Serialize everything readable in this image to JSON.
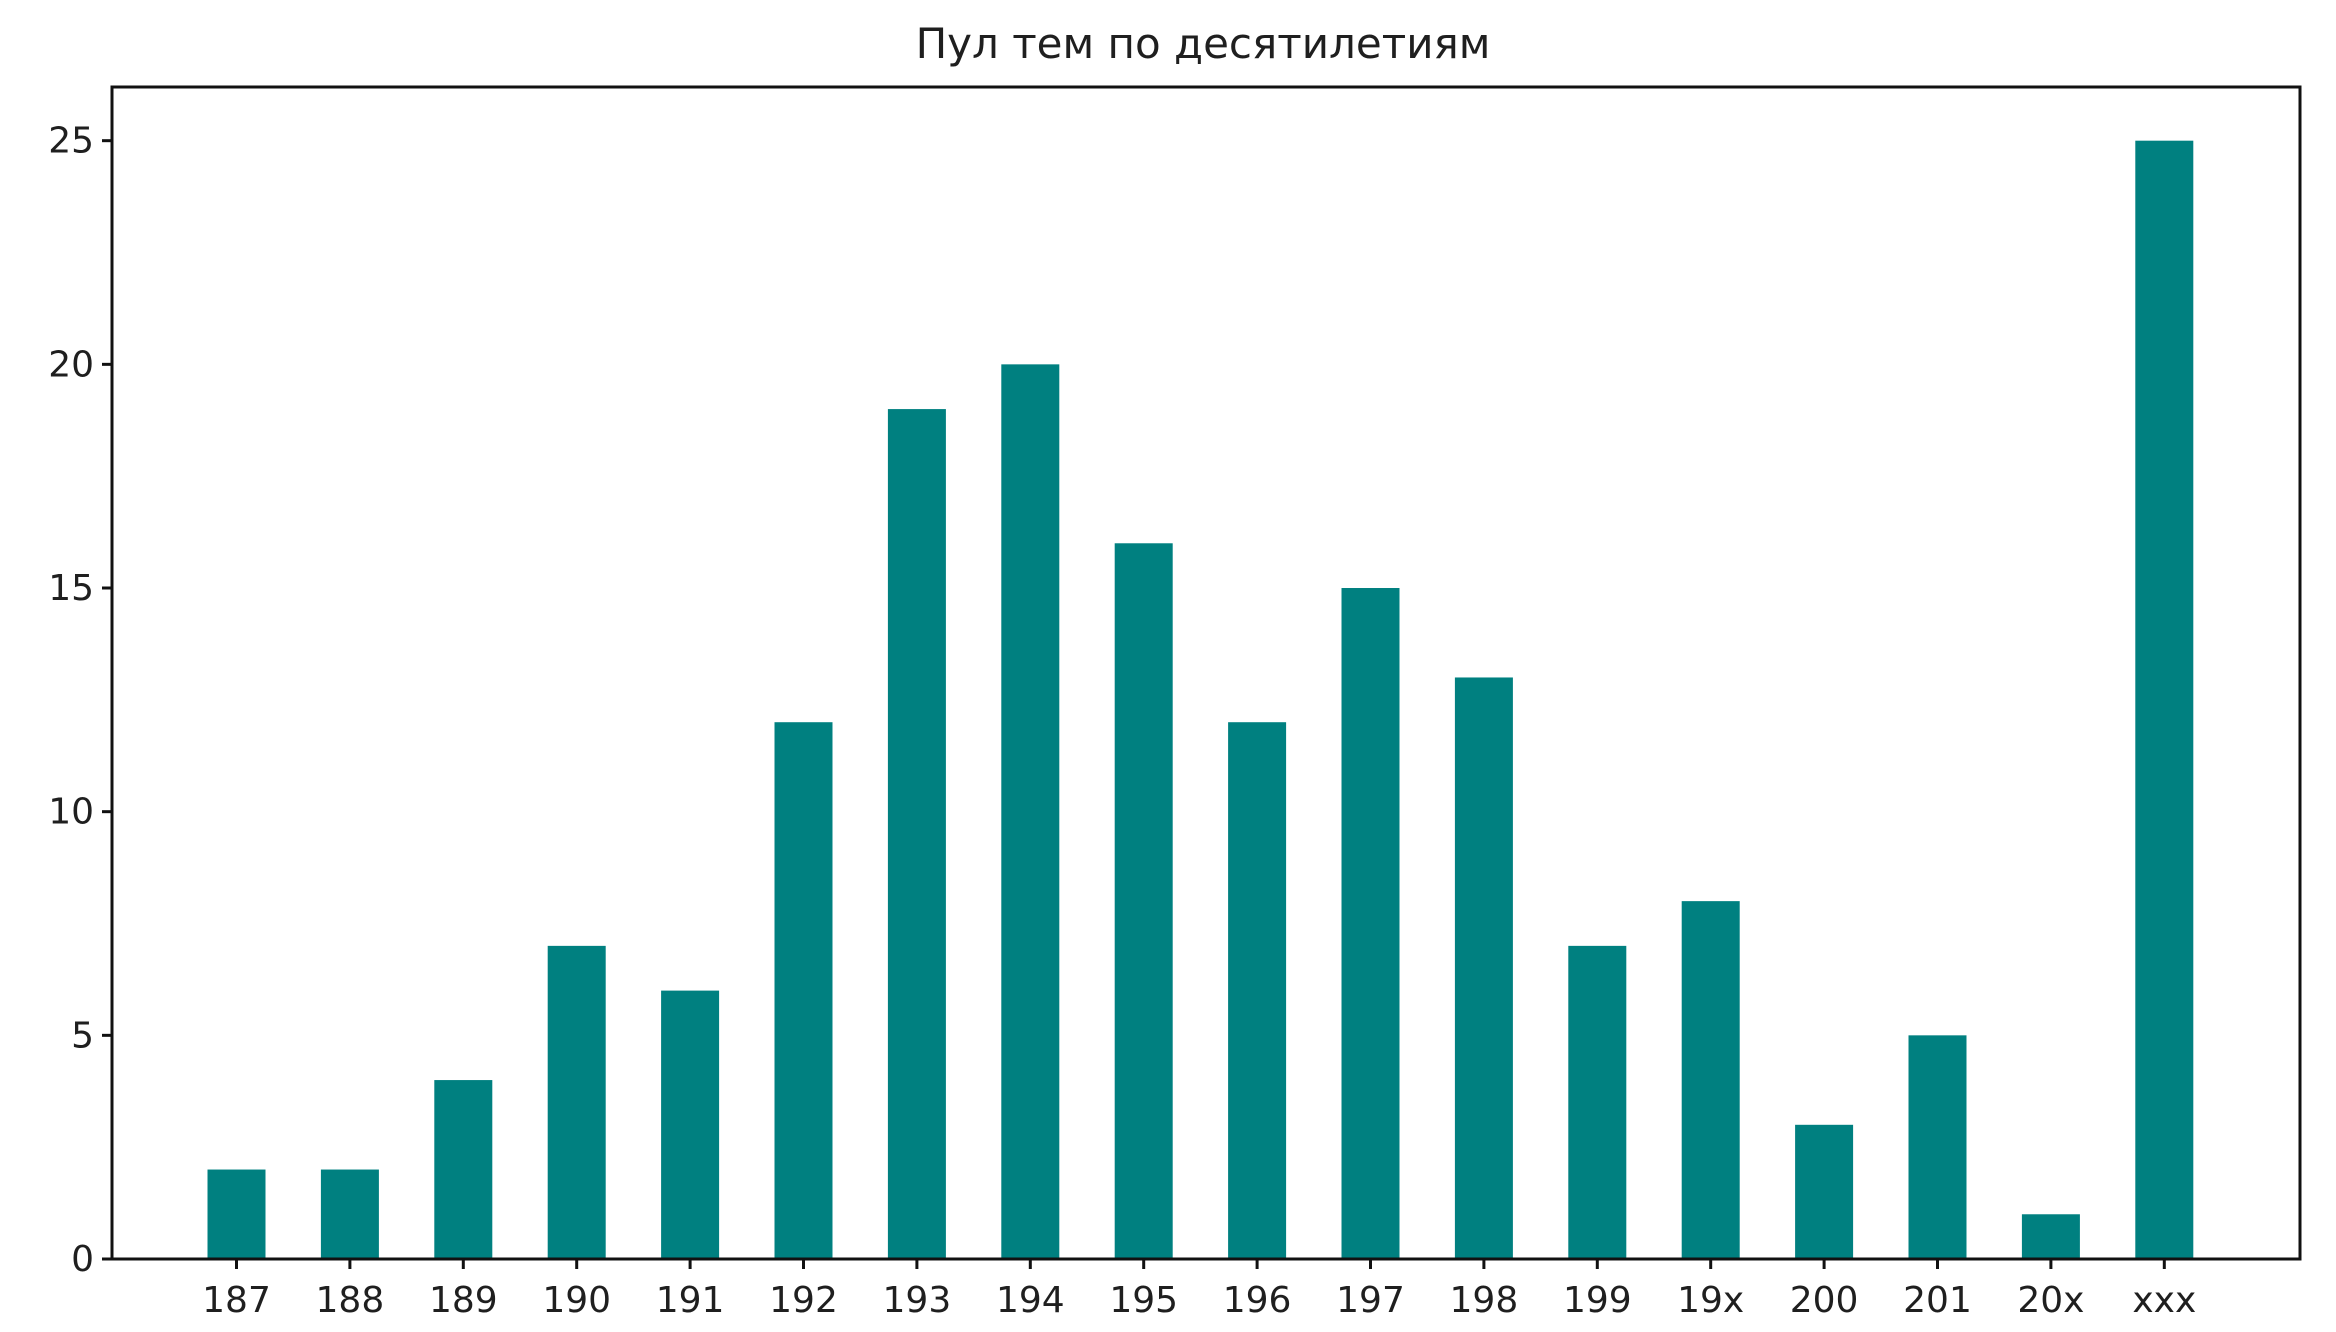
{
  "chart_data": {
    "type": "bar",
    "title": "Пул тем по десятилетиям",
    "xlabel": "",
    "ylabel": "",
    "categories": [
      "187",
      "188",
      "189",
      "190",
      "191",
      "192",
      "193",
      "194",
      "195",
      "196",
      "197",
      "198",
      "199",
      "19x",
      "200",
      "201",
      "20x",
      "xxx"
    ],
    "values": [
      2,
      2,
      4,
      7,
      6,
      12,
      19,
      20,
      16,
      12,
      15,
      13,
      7,
      8,
      3,
      5,
      1,
      25
    ],
    "ylim": [
      0,
      26.2
    ],
    "yticks": [
      0,
      5,
      10,
      15,
      20,
      25
    ],
    "grid": false,
    "bar_color": "#008080"
  }
}
